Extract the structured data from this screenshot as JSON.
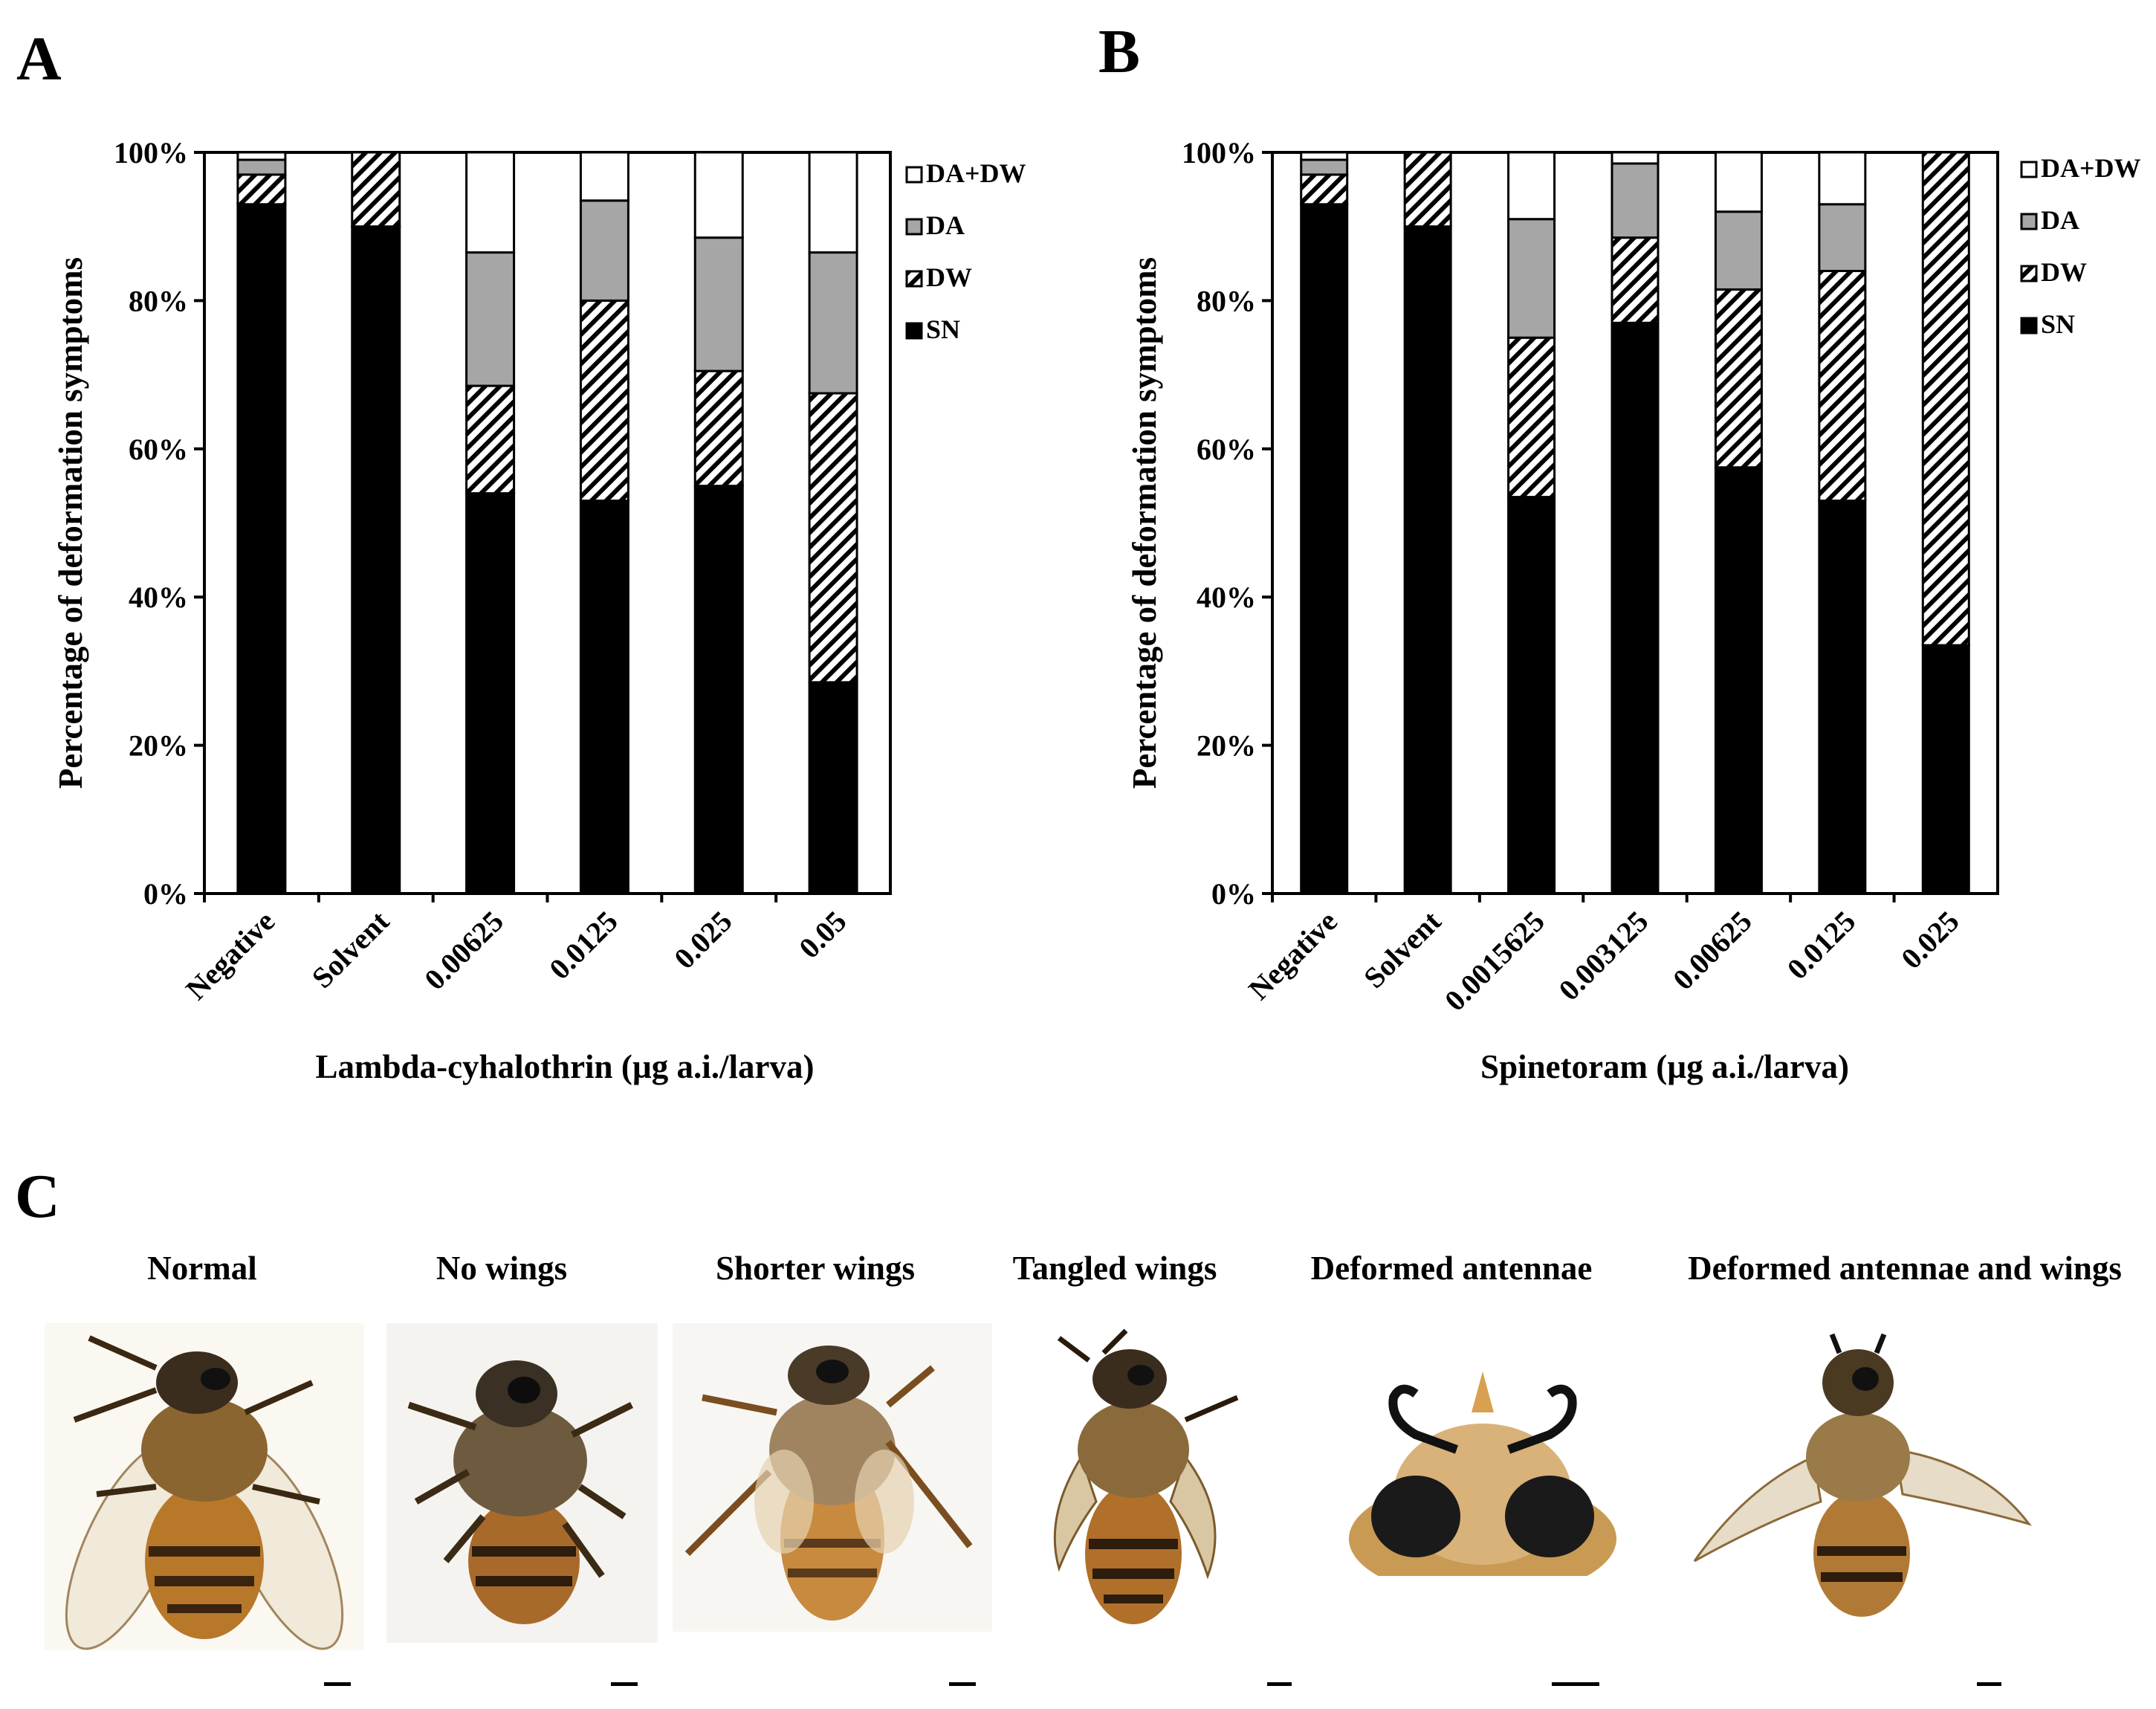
{
  "panel_labels": {
    "a": "A",
    "b": "B",
    "c": "C"
  },
  "colors": {
    "sn": "#000000",
    "dw_hatch": "#000000",
    "da": "#a6a6a6",
    "dadw": "#ffffff"
  },
  "chart_data": [
    {
      "type": "bar",
      "stacked": true,
      "percent": true,
      "xlabel": "Lambda-cyhalothrin (µg a.i./larva)",
      "ylabel": "Percentage of deformation symptoms",
      "yticks": [
        "0%",
        "20%",
        "40%",
        "60%",
        "80%",
        "100%"
      ],
      "ylim": [
        0,
        100
      ],
      "categories": [
        "Negative",
        "Solvent",
        "0.00625",
        "0.0125",
        "0.025",
        "0.05"
      ],
      "series": [
        {
          "name": "SN",
          "values": [
            93,
            90,
            54,
            53,
            55,
            28.5
          ]
        },
        {
          "name": "DW",
          "values": [
            4,
            10,
            14.5,
            27,
            15.5,
            39
          ]
        },
        {
          "name": "DA",
          "values": [
            2,
            0,
            18,
            13.5,
            18,
            19
          ]
        },
        {
          "name": "DA+DW",
          "values": [
            1,
            0,
            13.5,
            6.5,
            11.5,
            13.5
          ]
        }
      ],
      "legend": [
        "DA+DW",
        "DA",
        "DW",
        "SN"
      ]
    },
    {
      "type": "bar",
      "stacked": true,
      "percent": true,
      "xlabel": "Spinetoram (µg a.i./larva)",
      "ylabel": "Percentage of deformation symptoms",
      "yticks": [
        "0%",
        "20%",
        "40%",
        "60%",
        "80%",
        "100%"
      ],
      "ylim": [
        0,
        100
      ],
      "categories": [
        "Negative",
        "Solvent",
        "0.0015625",
        "0.003125",
        "0.00625",
        "0.0125",
        "0.025"
      ],
      "series": [
        {
          "name": "SN",
          "values": [
            93,
            90,
            53.5,
            77,
            57.5,
            53,
            33.5
          ]
        },
        {
          "name": "DW",
          "values": [
            4,
            10,
            21.5,
            11.5,
            24,
            31,
            66.5
          ]
        },
        {
          "name": "DA",
          "values": [
            2,
            0,
            16,
            10,
            10.5,
            9,
            0
          ]
        },
        {
          "name": "DA+DW",
          "values": [
            1,
            0,
            9,
            1.5,
            8,
            7,
            0
          ]
        }
      ],
      "legend": [
        "DA+DW",
        "DA",
        "DW",
        "SN"
      ]
    }
  ],
  "photos": [
    {
      "label": "Normal",
      "icon": "honeybee-normal-photo"
    },
    {
      "label": "No wings",
      "icon": "honeybee-no-wings-photo"
    },
    {
      "label": "Shorter wings",
      "icon": "honeybee-shorter-wings-photo"
    },
    {
      "label": "Tangled wings",
      "icon": "honeybee-tangled-wings-photo"
    },
    {
      "label": "Deformed antennae",
      "icon": "honeybee-deformed-antennae-photo"
    },
    {
      "label": "Deformed antennae and wings",
      "icon": "honeybee-deformed-antennae-wings-photo"
    }
  ]
}
